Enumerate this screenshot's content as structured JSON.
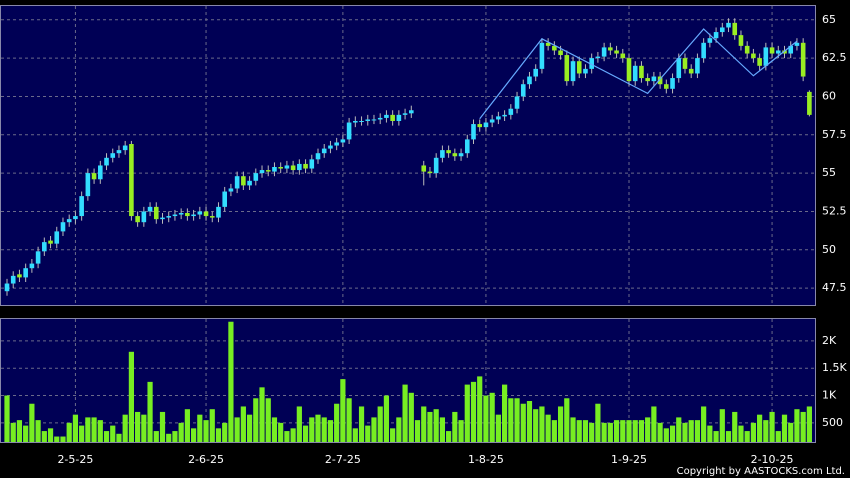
{
  "chart_data": [
    {
      "type": "candlestick",
      "categories": [
        null,
        null,
        null,
        null,
        null,
        null,
        null,
        null,
        null,
        null,
        null,
        "2-5-25",
        null,
        null,
        null,
        null,
        null,
        null,
        null,
        null,
        null,
        null,
        null,
        null,
        null,
        null,
        null,
        null,
        null,
        null,
        null,
        null,
        "2-6-25",
        null,
        null,
        null,
        null,
        null,
        null,
        null,
        null,
        null,
        null,
        null,
        null,
        null,
        null,
        null,
        null,
        null,
        null,
        null,
        null,
        null,
        "2-7-25",
        null,
        null,
        null,
        null,
        null,
        null,
        null,
        null,
        null,
        null,
        null,
        null,
        null,
        null,
        null,
        null,
        null,
        null,
        null,
        null,
        null,
        null,
        "1-8-25",
        null,
        null,
        null,
        null,
        null,
        null,
        null,
        null,
        null,
        null,
        null,
        null,
        null,
        null,
        null,
        null,
        null,
        null,
        null,
        null,
        null,
        null,
        "1-9-25",
        null,
        null,
        null,
        null,
        null,
        null,
        null,
        null,
        null,
        null,
        null,
        null,
        null,
        null,
        null,
        null,
        null,
        null,
        null,
        null,
        null,
        null,
        "2-10-25",
        null,
        null,
        null,
        null,
        null,
        null
      ],
      "open": [
        47.3,
        47.8,
        48.4,
        48.2,
        48.8,
        49.1,
        49.9,
        50.6,
        50.4,
        51.2,
        51.8,
        52.0,
        52.2,
        53.5,
        55.0,
        54.6,
        55.5,
        56.0,
        56.3,
        56.5,
        56.9,
        52.2,
        51.8,
        52.5,
        52.8,
        52.0,
        52.1,
        52.2,
        52.3,
        52.4,
        52.2,
        52.3,
        52.5,
        52.2,
        52.1,
        52.8,
        53.8,
        54.0,
        54.8,
        54.2,
        54.5,
        55.0,
        55.2,
        55.1,
        55.4,
        55.3,
        55.5,
        55.2,
        55.6,
        55.3,
        55.9,
        56.3,
        56.6,
        56.8,
        57.0,
        57.2,
        58.3,
        58.4,
        58.4,
        58.5,
        58.5,
        58.6,
        58.8,
        58.4,
        58.8,
        58.9,
        null,
        55.5,
        55.1,
        55.0,
        56.0,
        56.5,
        56.3,
        56.1,
        56.3,
        57.2,
        58.2,
        58.0,
        58.3,
        58.5,
        58.7,
        58.8,
        59.2,
        60.0,
        60.8,
        61.3,
        61.8,
        63.5,
        63.3,
        63.0,
        62.7,
        61.0,
        62.3,
        61.5,
        61.8,
        62.5,
        62.6,
        63.2,
        63.0,
        62.8,
        62.5,
        61.0,
        62.0,
        61.2,
        61.0,
        61.3,
        60.8,
        60.5,
        61.2,
        62.5,
        61.8,
        61.5,
        62.5,
        63.5,
        63.8,
        64.2,
        64.5,
        64.8,
        64.0,
        63.3,
        62.8,
        62.5,
        62.0,
        63.2,
        62.8,
        63.0,
        62.8,
        63.3,
        63.5,
        60.3
      ],
      "high": [
        48.1,
        48.6,
        48.7,
        49.1,
        49.4,
        50.2,
        50.8,
        50.9,
        51.5,
        52.1,
        52.3,
        52.5,
        53.8,
        55.3,
        55.3,
        55.8,
        56.3,
        56.6,
        56.8,
        57.1,
        57.1,
        52.5,
        52.8,
        53.1,
        53.1,
        52.4,
        52.5,
        52.6,
        52.7,
        52.7,
        52.6,
        52.8,
        52.8,
        52.5,
        53.1,
        54.1,
        54.3,
        55.1,
        55.1,
        54.8,
        55.3,
        55.5,
        55.5,
        55.7,
        55.7,
        55.8,
        55.8,
        55.9,
        55.9,
        56.2,
        56.6,
        56.9,
        57.1,
        57.3,
        57.5,
        58.6,
        58.7,
        58.7,
        58.8,
        58.8,
        58.9,
        59.1,
        59.1,
        59.1,
        59.2,
        59.4,
        null,
        55.8,
        55.4,
        56.3,
        56.8,
        56.8,
        56.6,
        56.6,
        57.5,
        58.5,
        58.5,
        58.6,
        58.8,
        59.0,
        59.1,
        59.5,
        60.3,
        61.1,
        61.6,
        62.1,
        63.8,
        63.8,
        63.6,
        63.3,
        63.0,
        62.6,
        62.6,
        62.1,
        62.8,
        62.9,
        63.5,
        63.5,
        63.3,
        63.1,
        62.8,
        62.3,
        62.3,
        61.5,
        61.6,
        61.6,
        61.1,
        61.5,
        62.8,
        62.8,
        62.1,
        62.8,
        63.8,
        64.1,
        64.5,
        64.8,
        65.1,
        65.1,
        64.3,
        63.6,
        63.1,
        62.8,
        63.5,
        63.5,
        63.3,
        63.3,
        63.6,
        63.8,
        63.8,
        60.4
      ],
      "low": [
        47.0,
        47.5,
        47.9,
        47.9,
        48.5,
        48.8,
        49.6,
        50.1,
        50.1,
        50.9,
        51.5,
        51.7,
        51.9,
        53.2,
        54.3,
        54.3,
        55.2,
        55.7,
        56.0,
        56.2,
        51.9,
        51.5,
        51.5,
        52.2,
        51.7,
        51.7,
        51.8,
        51.9,
        52.0,
        51.9,
        51.9,
        52.0,
        51.9,
        51.8,
        51.8,
        52.5,
        53.5,
        53.7,
        53.9,
        53.9,
        54.2,
        54.7,
        54.8,
        54.8,
        55.0,
        55.0,
        54.9,
        54.9,
        55.0,
        55.0,
        55.6,
        56.0,
        56.3,
        56.5,
        56.7,
        56.9,
        58.0,
        58.1,
        58.1,
        58.2,
        58.2,
        58.3,
        58.1,
        58.1,
        58.5,
        58.6,
        null,
        54.2,
        54.7,
        54.7,
        55.7,
        56.0,
        55.8,
        55.8,
        56.0,
        56.9,
        57.7,
        57.7,
        58.0,
        58.2,
        58.4,
        58.5,
        58.9,
        59.7,
        60.5,
        61.0,
        61.5,
        63.0,
        62.7,
        62.4,
        60.7,
        60.7,
        61.2,
        61.2,
        61.5,
        62.2,
        62.3,
        62.7,
        62.5,
        62.2,
        60.7,
        60.7,
        60.9,
        60.7,
        60.7,
        60.5,
        60.2,
        60.2,
        60.9,
        61.5,
        61.2,
        61.2,
        62.2,
        63.2,
        63.5,
        63.9,
        64.2,
        63.7,
        63.0,
        62.5,
        62.2,
        61.7,
        61.7,
        62.5,
        62.5,
        62.5,
        62.5,
        63.0,
        61.0,
        58.7
      ],
      "close": [
        47.8,
        48.3,
        48.2,
        48.8,
        49.1,
        49.9,
        50.5,
        50.4,
        51.2,
        51.8,
        52.0,
        52.2,
        53.5,
        55.0,
        54.6,
        55.5,
        56.0,
        56.3,
        56.5,
        56.8,
        52.2,
        51.8,
        52.5,
        52.8,
        52.0,
        52.1,
        52.2,
        52.3,
        52.4,
        52.2,
        52.3,
        52.5,
        52.2,
        52.1,
        52.8,
        53.8,
        54.0,
        54.8,
        54.2,
        54.5,
        55.0,
        55.2,
        55.1,
        55.4,
        55.3,
        55.5,
        55.2,
        55.6,
        55.3,
        55.9,
        56.3,
        56.6,
        56.8,
        57.0,
        57.2,
        58.3,
        58.4,
        58.4,
        58.5,
        58.5,
        58.6,
        58.8,
        58.4,
        58.8,
        58.9,
        59.1,
        null,
        55.1,
        55.0,
        56.0,
        56.5,
        56.3,
        56.1,
        56.3,
        57.2,
        58.2,
        58.0,
        58.3,
        58.5,
        58.7,
        58.8,
        59.2,
        60.0,
        60.8,
        61.3,
        61.8,
        63.5,
        63.3,
        63.0,
        62.7,
        61.0,
        62.3,
        61.5,
        61.8,
        62.5,
        62.6,
        63.2,
        63.0,
        62.8,
        62.5,
        61.0,
        62.0,
        61.2,
        61.0,
        61.3,
        60.8,
        60.5,
        61.2,
        62.5,
        61.8,
        61.5,
        62.5,
        63.5,
        63.8,
        64.2,
        64.5,
        64.8,
        64.0,
        63.3,
        62.8,
        62.5,
        62.0,
        63.2,
        62.8,
        63.0,
        62.8,
        63.3,
        63.5,
        61.3,
        58.8
      ],
      "up_color": "#33ddff",
      "down_color": "#99ee22",
      "zigzag": {
        "x": [
          76,
          86,
          103,
          112,
          120,
          127
        ],
        "values": [
          58.55,
          63.76,
          60.2,
          64.4,
          61.35,
          63.6
        ],
        "color": "#66aaff"
      },
      "ylim": [
        46.4,
        65.9
      ],
      "yticks": [
        65,
        62.5,
        60,
        57.5,
        55,
        52.5,
        50,
        47.5
      ],
      "grid": true
    },
    {
      "type": "bar",
      "values": [
        1000,
        500,
        550,
        450,
        850,
        550,
        350,
        400,
        250,
        250,
        500,
        650,
        450,
        600,
        600,
        550,
        350,
        450,
        300,
        650,
        1800,
        700,
        650,
        1250,
        350,
        700,
        300,
        350,
        500,
        750,
        400,
        650,
        550,
        750,
        400,
        500,
        2350,
        600,
        800,
        650,
        950,
        1150,
        950,
        600,
        500,
        350,
        400,
        800,
        450,
        600,
        650,
        600,
        550,
        850,
        1300,
        950,
        400,
        800,
        450,
        600,
        800,
        1000,
        400,
        600,
        1200,
        1050,
        550,
        800,
        700,
        750,
        600,
        350,
        700,
        550,
        1200,
        1250,
        1350,
        1000,
        1050,
        650,
        1200,
        950,
        950,
        850,
        900,
        750,
        800,
        650,
        550,
        800,
        950,
        600,
        550,
        550,
        500,
        850,
        500,
        500,
        550,
        550,
        550,
        550,
        550,
        600,
        800,
        500,
        400,
        450,
        600,
        500,
        550,
        550,
        800,
        450,
        350,
        750,
        350,
        700,
        450,
        350,
        500,
        650,
        550,
        700,
        350,
        650,
        500,
        750,
        700,
        800
      ],
      "color": "#77ee22",
      "ylim": [
        150,
        2400
      ],
      "yticks": [
        {
          "value": 2000,
          "label": "2K"
        },
        {
          "value": 1500,
          "label": "1.5K"
        },
        {
          "value": 1000,
          "label": "1K"
        },
        500
      ],
      "grid": true
    }
  ],
  "footer": "Copyright by AASTOCKS.com Ltd."
}
